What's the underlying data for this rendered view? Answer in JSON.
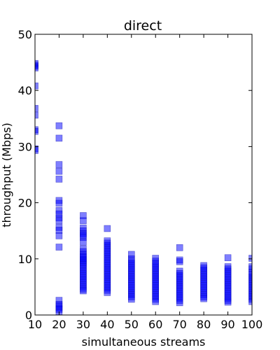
{
  "chart_data": {
    "type": "scatter",
    "title": "direct",
    "xlabel": "simultaneous streams",
    "ylabel": "throughput (Mbps)",
    "xlim": [
      10,
      100
    ],
    "ylim": [
      0,
      50
    ],
    "xticks": [
      "10",
      "20",
      "30",
      "40",
      "50",
      "60",
      "70",
      "80",
      "90",
      "100"
    ],
    "yticks": [
      "0",
      "10",
      "20",
      "30",
      "40",
      "50"
    ],
    "grid": false,
    "legend": "none",
    "marker": "square",
    "color": "#0000ff",
    "alpha": 0.5,
    "series": [
      {
        "x": 10,
        "values": [
          44.8,
          44.5,
          44.3,
          44.0,
          40.8,
          36.8,
          35.6,
          33.0,
          32.7,
          29.6,
          29.3
        ]
      },
      {
        "x": 20,
        "values": [
          33.7,
          31.5,
          26.8,
          25.6,
          24.2,
          20.4,
          19.9,
          18.6,
          18.0,
          17.3,
          16.8,
          15.6,
          15.1,
          14.1,
          12.1,
          2.6,
          1.9,
          1.6,
          1.3,
          1.0,
          0.5
        ]
      },
      {
        "x": 30,
        "values": [
          17.7,
          16.8,
          15.5,
          15.0,
          14.5,
          14.2,
          13.8,
          13.0,
          11.8,
          11.3,
          10.8,
          10.5,
          10.2,
          9.9,
          9.6,
          9.3,
          9.0,
          8.6,
          8.2,
          7.8,
          7.4,
          7.0,
          6.6,
          6.2,
          5.8,
          5.4,
          5.0,
          4.6,
          4.3
        ]
      },
      {
        "x": 40,
        "values": [
          15.4,
          13.2,
          12.8,
          12.4,
          12.0,
          11.6,
          11.2,
          10.8,
          10.4,
          10.0,
          9.6,
          9.2,
          8.8,
          8.4,
          8.0,
          7.6,
          7.2,
          6.8,
          6.4,
          6.0,
          5.6,
          5.2,
          4.8,
          4.4,
          4.0
        ]
      },
      {
        "x": 50,
        "values": [
          10.8,
          10.0,
          9.6,
          9.2,
          8.8,
          8.4,
          8.0,
          7.6,
          7.2,
          6.8,
          6.4,
          6.0,
          5.6,
          5.2,
          4.8,
          4.4,
          4.0,
          3.6,
          3.2,
          2.8
        ]
      },
      {
        "x": 60,
        "values": [
          10.1,
          9.6,
          9.2,
          8.8,
          8.4,
          8.0,
          7.6,
          7.2,
          6.8,
          6.4,
          6.0,
          5.6,
          5.2,
          4.8,
          4.4,
          4.0,
          3.6,
          3.2,
          2.8,
          2.4
        ]
      },
      {
        "x": 70,
        "values": [
          12.0,
          9.8,
          9.5,
          7.8,
          7.4,
          7.0,
          6.6,
          6.2,
          5.8,
          5.4,
          5.0,
          4.6,
          4.2,
          3.8,
          3.4,
          3.0,
          2.6,
          2.2
        ]
      },
      {
        "x": 80,
        "values": [
          8.8,
          8.4,
          8.0,
          7.6,
          7.2,
          6.8,
          6.4,
          6.0,
          5.6,
          5.2,
          4.8,
          4.4,
          4.0,
          3.6,
          3.2,
          2.9
        ]
      },
      {
        "x": 90,
        "values": [
          10.2,
          8.6,
          8.2,
          7.8,
          7.4,
          7.0,
          6.6,
          6.2,
          5.8,
          5.4,
          5.0,
          4.6,
          4.2,
          3.8,
          3.4,
          3.0,
          2.6,
          2.3
        ]
      },
      {
        "x": 100,
        "values": [
          10.1,
          8.6,
          8.2,
          7.6,
          7.2,
          6.8,
          6.4,
          6.0,
          5.6,
          5.2,
          4.8,
          4.4,
          4.0,
          3.6,
          3.2,
          2.8,
          2.4
        ]
      }
    ]
  }
}
